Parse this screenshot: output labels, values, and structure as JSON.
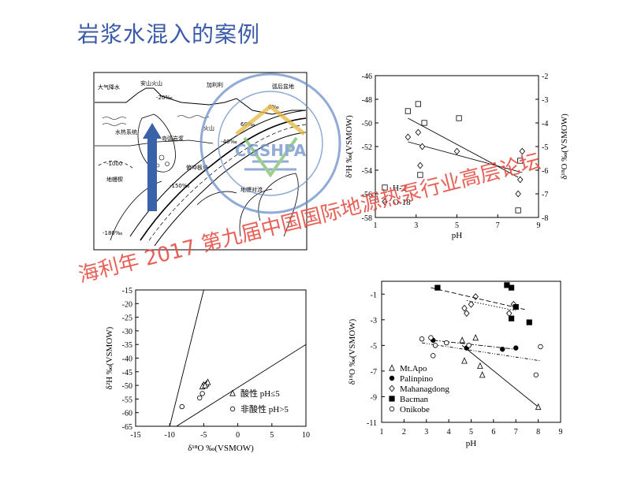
{
  "page": {
    "title": "岩浆水混入的案例"
  },
  "watermark": {
    "text": "海利年 2017 第九届中国国际地源热泵行业高层论坛",
    "seal_text": "CGSHPA",
    "seal_ring_text": "中国地源热泵产业联盟 Ground Source Heat Pump Association"
  },
  "diagram": {
    "labels": [
      "大气降水",
      "安山火山",
      "-20‰",
      "水热系统",
      "岛弧岩浆",
      "火山",
      "加利利",
      "弧后盆地",
      "地幔楔",
      "-1000",
      "0‰",
      "60‰",
      "-40‰",
      "-150‰",
      "-180‰",
      "俯冲板块",
      "地幔对流"
    ],
    "colors": {
      "arrow": "#3a62a8"
    }
  },
  "chart_data": [
    {
      "type": "scatter",
      "id": "top-right",
      "xlabel": "pH",
      "ylabel": "δ²H ‰(VSMOW)",
      "y2label": "δ¹⁸O ‰(VSMOW)",
      "xlim": [
        1,
        9
      ],
      "ylim": [
        -58,
        -46
      ],
      "y2lim": [
        -8,
        -2
      ],
      "xticks": [
        1,
        3,
        5,
        7,
        9
      ],
      "yticks": [
        -46,
        -48,
        -50,
        -52,
        -54,
        -56,
        -58
      ],
      "y2ticks": [
        -2,
        -3,
        -4,
        -5,
        -6,
        -7,
        -8
      ],
      "series": [
        {
          "name": "H-2",
          "marker": "square",
          "axis": "left",
          "points": [
            [
              2.6,
              -49.0
            ],
            [
              3.1,
              -48.4
            ],
            [
              3.4,
              -50.0
            ],
            [
              3.2,
              -54.4
            ],
            [
              5.1,
              -49.6
            ],
            [
              8.1,
              -53.2
            ],
            [
              8.0,
              -57.4
            ]
          ],
          "fit": [
            [
              2.6,
              -49.6
            ],
            [
              8.0,
              -54.6
            ]
          ]
        },
        {
          "name": "O-18",
          "marker": "diamond",
          "axis": "right",
          "points": [
            [
              2.6,
              -4.6
            ],
            [
              3.1,
              -4.4
            ],
            [
              3.3,
              -5.0
            ],
            [
              3.2,
              -5.8
            ],
            [
              5.0,
              -5.2
            ],
            [
              8.2,
              -5.2
            ],
            [
              8.1,
              -6.4
            ],
            [
              8.0,
              -7.0
            ]
          ],
          "fit": [
            [
              2.6,
              -4.8
            ],
            [
              8.2,
              -6.1
            ]
          ]
        }
      ]
    },
    {
      "type": "scatter",
      "id": "bottom-left",
      "xlabel": "δ¹⁸O ‰(VSMOW)",
      "ylabel": "δ²H ‰(VSMOW)",
      "xlim": [
        -15,
        10
      ],
      "ylim": [
        -65,
        -15
      ],
      "xticks": [
        -15,
        -10,
        -5,
        0,
        5,
        10
      ],
      "yticks": [
        -15,
        -20,
        -25,
        -30,
        -35,
        -40,
        -45,
        -50,
        -55,
        -60,
        -65
      ],
      "series": [
        {
          "name": "酸性 pH≤5",
          "marker": "triangle",
          "points": [
            [
              -5.0,
              -49.8
            ],
            [
              -4.6,
              -49.4
            ],
            [
              -4.4,
              -48.8
            ],
            [
              -5.2,
              -50.4
            ],
            [
              -4.8,
              -50.0
            ]
          ]
        },
        {
          "name": "非酸性 pH>5",
          "marker": "circle",
          "points": [
            [
              -8.2,
              -57.8
            ],
            [
              -5.6,
              -54.6
            ],
            [
              -5.2,
              -53.0
            ]
          ]
        }
      ],
      "lines": [
        {
          "points": [
            [
              -10,
              -65
            ],
            [
              -5,
              -15
            ]
          ]
        },
        {
          "points": [
            [
              -9,
              -65
            ],
            [
              10,
              -35
            ]
          ]
        }
      ]
    },
    {
      "type": "scatter",
      "id": "bottom-right",
      "xlabel": "pH",
      "ylabel": "δ¹⁸O ‰(VSMOW)",
      "xlim": [
        1,
        9
      ],
      "ylim": [
        -11,
        0
      ],
      "xticks": [
        1,
        2,
        3,
        4,
        5,
        6,
        7,
        8,
        9
      ],
      "yticks": [
        -1,
        -3,
        -5,
        -7,
        -9,
        -11
      ],
      "series": [
        {
          "name": "Mt.Apo",
          "marker": "triangle-open",
          "points": [
            [
              4.6,
              -4.6
            ],
            [
              5.2,
              -4.4
            ],
            [
              4.7,
              -6.2
            ],
            [
              5.4,
              -6.6
            ],
            [
              5.5,
              -7.3
            ],
            [
              8.0,
              -9.8
            ]
          ],
          "fit": [
            [
              4.6,
              -5.0
            ],
            [
              8.0,
              -9.8
            ],
            "solid"
          ]
        },
        {
          "name": "Palinpino",
          "marker": "circle-filled",
          "points": [
            [
              3.3,
              -4.6
            ],
            [
              4.8,
              -5.2
            ],
            [
              6.4,
              -5.3
            ],
            [
              7.0,
              -5.2
            ]
          ],
          "fit": [
            [
              3.3,
              -4.6
            ],
            [
              7.0,
              -5.3
            ],
            "dashdot"
          ]
        },
        {
          "name": "Mahanagdong",
          "marker": "diamond-open",
          "points": [
            [
              4.7,
              -2.1
            ],
            [
              5.0,
              -1.8
            ],
            [
              5.2,
              -1.2
            ],
            [
              4.8,
              -2.5
            ],
            [
              6.7,
              -2.5
            ],
            [
              6.9,
              -1.8
            ]
          ],
          "fit": [
            [
              4.8,
              -1.5
            ],
            [
              7.0,
              -2.3
            ],
            "dotted"
          ]
        },
        {
          "name": "Bacman",
          "marker": "square-filled",
          "points": [
            [
              3.5,
              -0.5
            ],
            [
              6.6,
              -0.3
            ],
            [
              6.8,
              -0.5
            ],
            [
              7.0,
              -2.0
            ],
            [
              6.8,
              -2.9
            ],
            [
              7.6,
              -3.2
            ]
          ],
          "fit": [
            [
              3.2,
              -0.5
            ],
            [
              7.4,
              -2.2
            ],
            "dashed"
          ]
        },
        {
          "name": "Onikobe",
          "marker": "circle-open",
          "points": [
            [
              2.8,
              -4.5
            ],
            [
              3.2,
              -4.4
            ],
            [
              3.4,
              -5.0
            ],
            [
              3.9,
              -4.8
            ],
            [
              4.9,
              -5.0
            ],
            [
              3.3,
              -5.8
            ],
            [
              7.9,
              -7.3
            ],
            [
              8.1,
              -5.1
            ]
          ],
          "fit": [
            [
              2.8,
              -4.8
            ],
            [
              8.1,
              -6.2
            ],
            "dashdot2"
          ]
        }
      ]
    }
  ]
}
